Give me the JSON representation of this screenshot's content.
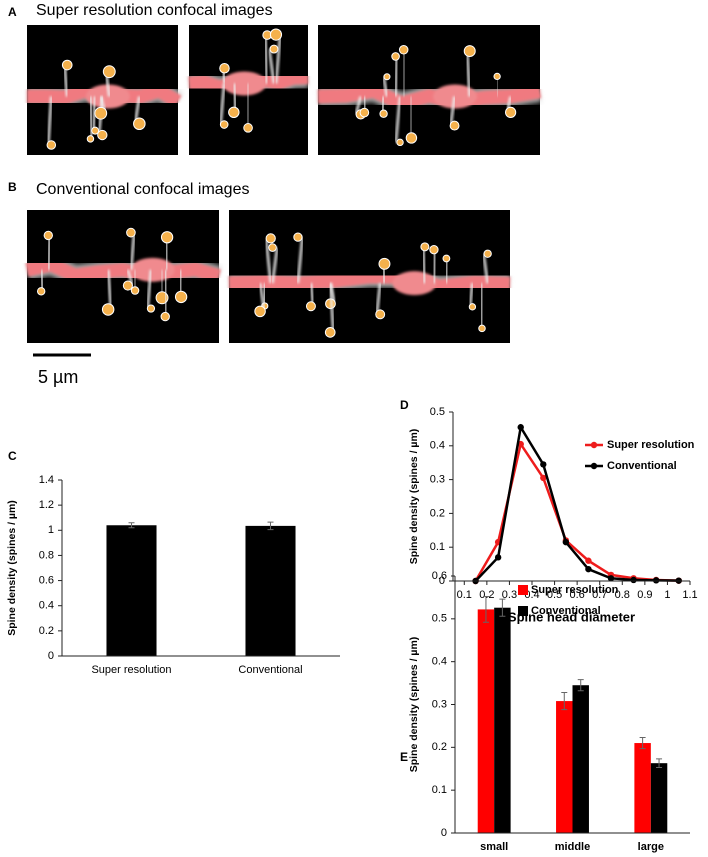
{
  "panels": {
    "A": {
      "label": "A",
      "title": "Super resolution confocal images"
    },
    "B": {
      "label": "B",
      "title": "Conventional confocal images"
    },
    "scale_bar": "5 µm"
  },
  "chart_data": [
    {
      "type": "bar",
      "panel_label": "C",
      "ylabel": "Spine density (spines / µm)",
      "categories": [
        "Super resolution",
        "Conventional"
      ],
      "series": [
        {
          "color": "#000000",
          "values": [
            1.04,
            1.035
          ],
          "errors": [
            0.02,
            0.03
          ]
        }
      ],
      "ylim": [
        0,
        1.4
      ],
      "yticks": [
        0,
        0.2,
        0.4,
        0.6,
        0.8,
        1,
        1.2,
        1.4
      ]
    },
    {
      "type": "line",
      "panel_label": "D",
      "ylabel": "Spine density (spines / µm)",
      "xlabel": "Spine head diameter",
      "x": [
        0.15,
        0.25,
        0.35,
        0.45,
        0.55,
        0.65,
        0.75,
        0.85,
        0.95,
        1.05
      ],
      "series": [
        {
          "name": "Super resolution",
          "color": "#ee1c1c",
          "values": [
            0,
            0.115,
            0.405,
            0.305,
            0.12,
            0.06,
            0.018,
            0.008,
            0.003,
            0.001
          ]
        },
        {
          "name": "Conventional",
          "color": "#000000",
          "values": [
            0,
            0.07,
            0.455,
            0.345,
            0.115,
            0.035,
            0.008,
            0.003,
            0.002,
            0.001
          ]
        }
      ],
      "xlim": [
        0.05,
        1.1
      ],
      "xticks": [
        0.1,
        0.2,
        0.3,
        0.4,
        0.5,
        0.6,
        0.7,
        0.8,
        0.9,
        1,
        1.1
      ],
      "ylim": [
        0,
        0.5
      ],
      "yticks": [
        0,
        0.1,
        0.2,
        0.3,
        0.4,
        0.5
      ],
      "legend": "upper right"
    },
    {
      "type": "bar",
      "panel_label": "E",
      "ylabel": "Spine density (spines / µm)",
      "categories": [
        "small",
        "middle",
        "large"
      ],
      "series": [
        {
          "name": "Super resolution",
          "color": "#ff0000",
          "values": [
            0.522,
            0.308,
            0.21
          ],
          "errors": [
            0.03,
            0.02,
            0.013
          ]
        },
        {
          "name": "Conventional",
          "color": "#000000",
          "values": [
            0.526,
            0.345,
            0.163
          ],
          "errors": [
            0.02,
            0.013,
            0.01
          ]
        }
      ],
      "ylim": [
        0,
        0.6
      ],
      "yticks": [
        0,
        0.1,
        0.2,
        0.3,
        0.4,
        0.5,
        0.6
      ],
      "legend": "upper right"
    }
  ]
}
